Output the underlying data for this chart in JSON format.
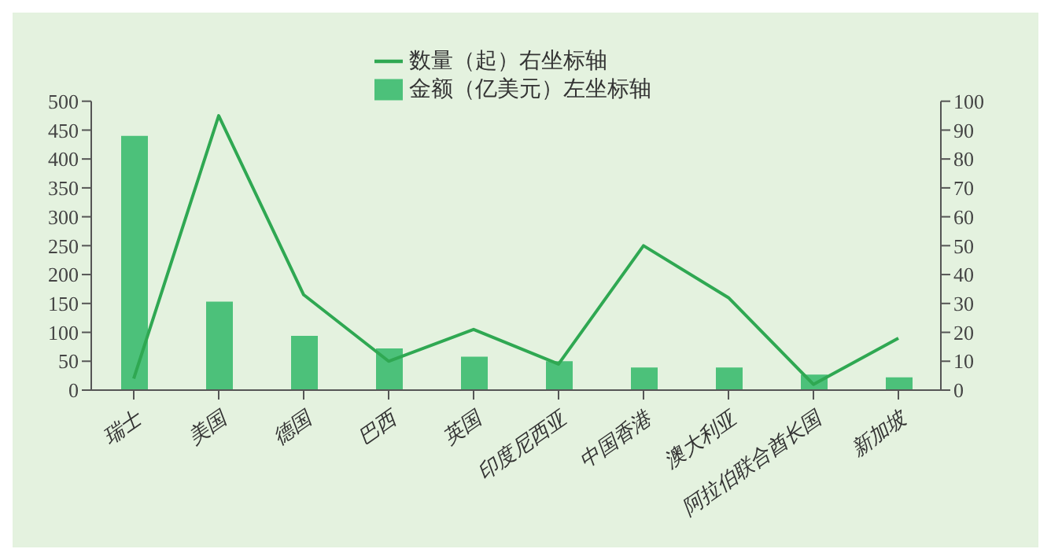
{
  "chart_data": {
    "type": "bar",
    "categories": [
      "瑞士",
      "美国",
      "德国",
      "巴西",
      "英国",
      "印度尼西亚",
      "中国香港",
      "澳大利亚",
      "阿拉伯联合酋长国",
      "新加坡"
    ],
    "series": [
      {
        "name": "金额（亿美元）左坐标轴",
        "color": "#4cc17a",
        "values": [
          440,
          153,
          94,
          72,
          58,
          50,
          39,
          39,
          27,
          22
        ]
      },
      {
        "name": "数量（起）右坐标轴",
        "type": "line",
        "axis": "y2",
        "color": "#2fa852",
        "values": [
          4,
          95,
          33,
          10,
          21,
          9,
          50,
          32,
          2,
          18
        ]
      }
    ],
    "ylim": [
      0,
      500
    ],
    "yticks": [
      0,
      50,
      100,
      150,
      200,
      250,
      300,
      350,
      400,
      450,
      500
    ],
    "y2lim": [
      0,
      100
    ],
    "y2ticks": [
      0,
      10,
      20,
      30,
      40,
      50,
      60,
      70,
      80,
      90,
      100
    ],
    "grid": false,
    "legend": "top",
    "marker": "none"
  }
}
